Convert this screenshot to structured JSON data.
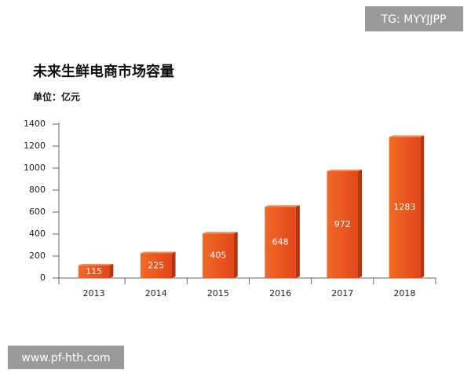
{
  "chart_data": {
    "type": "bar",
    "title": "未来生鲜电商市场容量",
    "subtitle": "单位：亿元",
    "categories": [
      "2013",
      "2014",
      "2015",
      "2016",
      "2017",
      "2018"
    ],
    "values": [
      115,
      225,
      405,
      648,
      972,
      1283
    ],
    "color": "#e8521b",
    "ylim": [
      0,
      1400
    ],
    "yticks": [
      0,
      200,
      400,
      600,
      800,
      1000,
      1200,
      1400
    ],
    "grid": false
  },
  "watermarks": {
    "top_right": "TG: MYYJJPP",
    "bottom_left": "www.pf-hth.com"
  }
}
